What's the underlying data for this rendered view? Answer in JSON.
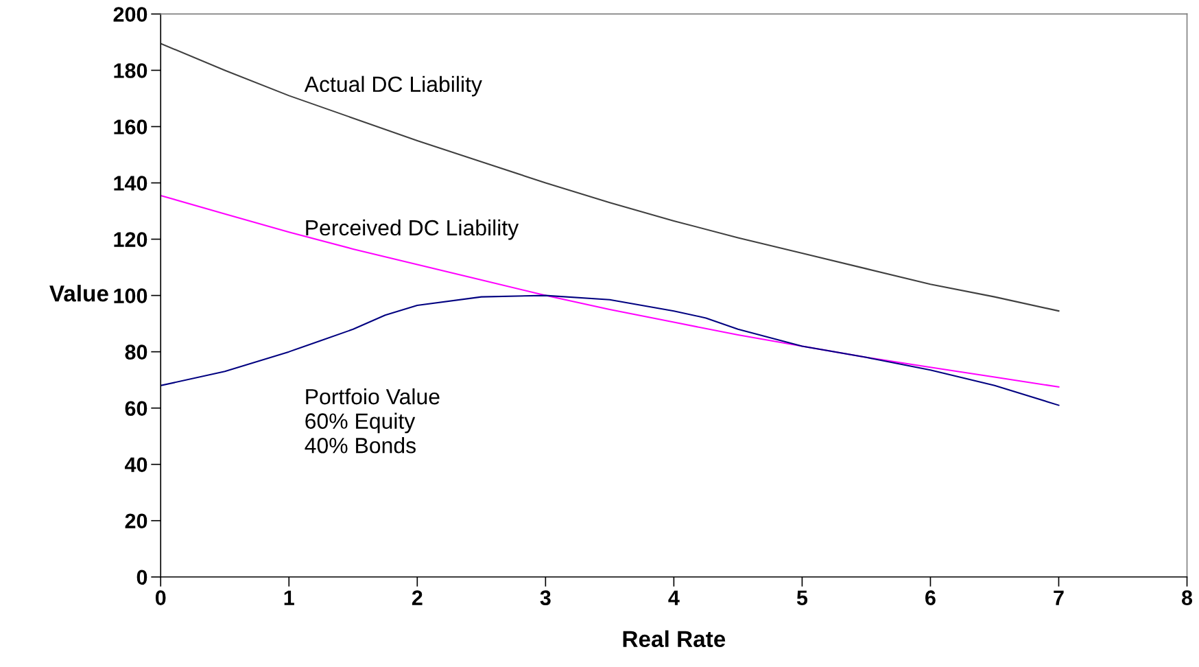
{
  "chart_data": {
    "type": "line",
    "xlabel": "Real Rate",
    "ylabel": "Value",
    "xlim": [
      0,
      8
    ],
    "xticks": [
      0,
      1,
      2,
      3,
      4,
      5,
      6,
      7,
      8
    ],
    "ylim": [
      0,
      200
    ],
    "yticks": [
      0,
      20,
      40,
      60,
      80,
      100,
      120,
      140,
      160,
      180,
      200
    ],
    "grid": false,
    "legend": false,
    "marker": "none",
    "line_style": "solid",
    "series": [
      {
        "name": "Actual DC Liability",
        "color": "#404040",
        "x": [
          0,
          0.5,
          1,
          1.5,
          2,
          2.5,
          3,
          3.5,
          4,
          4.5,
          5,
          5.5,
          6,
          6.5,
          7
        ],
        "values": [
          189.5,
          180,
          171,
          163,
          155,
          147.5,
          140,
          133,
          126.5,
          120.5,
          115,
          109.5,
          104,
          99.5,
          94.5
        ]
      },
      {
        "name": "Perceived DC Liability",
        "color": "#ff00ff",
        "x": [
          0,
          0.5,
          1,
          1.5,
          2,
          2.5,
          3,
          3.5,
          4,
          4.5,
          5,
          5.5,
          6,
          6.5,
          7
        ],
        "values": [
          135.5,
          129,
          122.5,
          116.5,
          111,
          105.5,
          100,
          95,
          90.5,
          86,
          82,
          78,
          74.5,
          71,
          67.5
        ]
      },
      {
        "name": "Portfoio Value\n60% Equity\n40% Bonds",
        "color": "#000080",
        "x": [
          0,
          0.5,
          1,
          1.25,
          1.5,
          1.75,
          2,
          2.5,
          3,
          3.5,
          4,
          4.25,
          4.5,
          5,
          5.5,
          6,
          6.5,
          7
        ],
        "values": [
          68,
          73,
          80,
          84,
          88,
          93,
          96.5,
          99.5,
          100,
          98.5,
          94.5,
          92,
          88,
          82,
          78,
          73.5,
          68,
          61
        ]
      }
    ]
  }
}
